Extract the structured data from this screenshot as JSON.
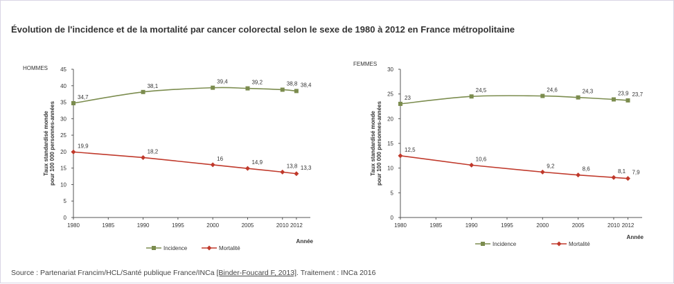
{
  "title": "Évolution de l'incidence et de la mortalité par cancer colorectal selon le sexe de 1980 à 2012 en France métropolitaine",
  "source": {
    "prefix": "Source : Partenariat Francim/HCL/Santé publique France/INCa ",
    "ref": "[Binder-Foucard F, 2013]",
    "suffix": ". Traitement : INCa 2016"
  },
  "colors": {
    "incidence": "#7b8c4e",
    "mortalite": "#c0392b",
    "axis": "#555555"
  },
  "chart_data": [
    {
      "type": "line",
      "panel_label": "HOMMES",
      "ylabel": "Taux standardisé monde pour 100 000 personnes-années",
      "xlabel": "Année",
      "ylim": [
        0,
        45
      ],
      "yticks": [
        0,
        5,
        10,
        15,
        20,
        25,
        30,
        35,
        40,
        45
      ],
      "xticks": [
        1980,
        1985,
        1990,
        1995,
        2000,
        2005,
        2010,
        2012
      ],
      "x": [
        1980,
        1990,
        2000,
        2005,
        2010,
        2012
      ],
      "series": [
        {
          "name": "Incidence",
          "values": [
            34.7,
            38.1,
            39.4,
            39.2,
            38.8,
            38.4
          ],
          "labels": [
            "34,7",
            "38,1",
            "39,4",
            "39,2",
            "38,8",
            "38,4"
          ]
        },
        {
          "name": "Mortalité",
          "values": [
            19.9,
            18.2,
            16,
            14.9,
            13.8,
            13.3
          ],
          "labels": [
            "19,9",
            "18,2",
            "16",
            "14,9",
            "13,8",
            "13,3"
          ]
        }
      ],
      "legend": "bottom"
    },
    {
      "type": "line",
      "panel_label": "FEMMES",
      "ylabel": "Taux standardisé monde pour 100 000 personnes-années",
      "xlabel": "Année",
      "ylim": [
        0,
        30
      ],
      "yticks": [
        0,
        5,
        10,
        15,
        20,
        25,
        30
      ],
      "xticks": [
        1980,
        1985,
        1990,
        1995,
        2000,
        2005,
        2010,
        2012
      ],
      "x": [
        1980,
        1990,
        2000,
        2005,
        2010,
        2012
      ],
      "series": [
        {
          "name": "Incidence",
          "values": [
            23,
            24.5,
            24.6,
            24.3,
            23.9,
            23.7
          ],
          "labels": [
            "23",
            "24,5",
            "24,6",
            "24,3",
            "23,9",
            "23,7"
          ]
        },
        {
          "name": "Mortalité",
          "values": [
            12.5,
            10.6,
            9.2,
            8.6,
            8.1,
            7.9
          ],
          "labels": [
            "12,5",
            "10,6",
            "9,2",
            "8,6",
            "8,1",
            "7,9"
          ]
        }
      ],
      "legend": "bottom"
    }
  ]
}
